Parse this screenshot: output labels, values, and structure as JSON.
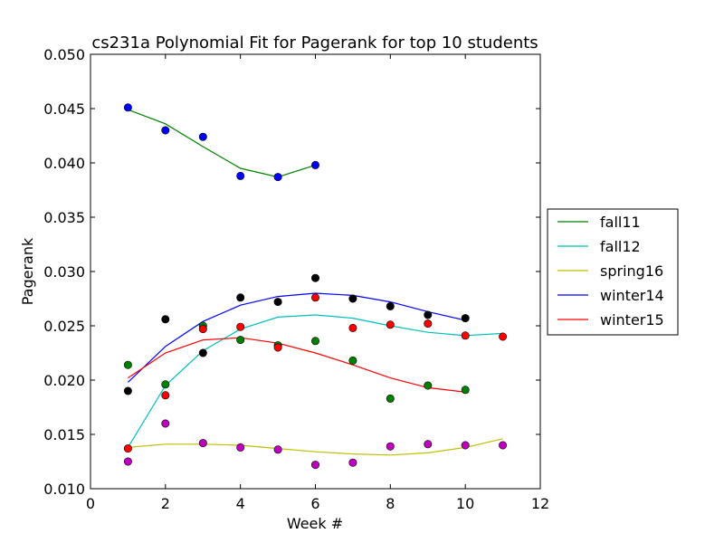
{
  "chart_data": {
    "type": "scatter",
    "title": "cs231a Polynomial Fit for Pagerank for top 10 students",
    "xlabel": "Week #",
    "ylabel": "Pagerank",
    "xlim": [
      0,
      12
    ],
    "ylim": [
      0.01,
      0.05
    ],
    "xticks": [
      0,
      2,
      4,
      6,
      8,
      10,
      12
    ],
    "xtick_labels": [
      "0",
      "2",
      "4",
      "6",
      "8",
      "10",
      "12"
    ],
    "yticks": [
      0.01,
      0.015,
      0.02,
      0.025,
      0.03,
      0.035,
      0.04,
      0.045,
      0.05
    ],
    "ytick_labels": [
      "0.010",
      "0.015",
      "0.020",
      "0.025",
      "0.030",
      "0.035",
      "0.040",
      "0.045",
      "0.050"
    ],
    "grid": false,
    "legend_position": "outside-right",
    "series": [
      {
        "name": "fall11",
        "line_color": "#008000",
        "point_color": "#0000ff",
        "fit_x": [
          1,
          2,
          3,
          4,
          5,
          6
        ],
        "fit_y": [
          0.0449,
          0.0436,
          0.0415,
          0.0395,
          0.0387,
          0.0398
        ],
        "points_x": [
          1,
          2,
          3,
          4,
          5,
          6
        ],
        "points_y": [
          0.0451,
          0.043,
          0.0424,
          0.0388,
          0.0387,
          0.0398
        ]
      },
      {
        "name": "fall12",
        "line_color": "#00bfbf",
        "point_color": "#008000",
        "fit_x": [
          1,
          2,
          3,
          4,
          5,
          6,
          7,
          8,
          9,
          10,
          11
        ],
        "fit_y": [
          0.0138,
          0.0195,
          0.0227,
          0.0247,
          0.0258,
          0.026,
          0.0257,
          0.025,
          0.0244,
          0.0241,
          0.0243
        ],
        "points_x": [
          1,
          2,
          3,
          4,
          5,
          6,
          7,
          8,
          9,
          10
        ],
        "points_y": [
          0.0214,
          0.0196,
          0.025,
          0.0237,
          0.0232,
          0.0236,
          0.0218,
          0.0183,
          0.0195,
          0.0191
        ]
      },
      {
        "name": "spring16",
        "line_color": "#bfbf00",
        "point_color": "#bf00bf",
        "fit_x": [
          1,
          2,
          3,
          4,
          5,
          6,
          7,
          8,
          9,
          10,
          11
        ],
        "fit_y": [
          0.0138,
          0.0141,
          0.0141,
          0.014,
          0.0137,
          0.0134,
          0.0132,
          0.0131,
          0.0133,
          0.0138,
          0.0146
        ],
        "points_x": [
          1,
          2,
          3,
          4,
          5,
          6,
          7,
          8,
          9,
          10,
          11
        ],
        "points_y": [
          0.0125,
          0.016,
          0.0142,
          0.0138,
          0.0136,
          0.0122,
          0.0124,
          0.0139,
          0.0141,
          0.014,
          0.014
        ]
      },
      {
        "name": "winter14",
        "line_color": "#0000ff",
        "point_color": "#000000",
        "fit_x": [
          1,
          2,
          3,
          4,
          5,
          6,
          7,
          8,
          9,
          10
        ],
        "fit_y": [
          0.0198,
          0.0231,
          0.0254,
          0.0269,
          0.0277,
          0.028,
          0.0278,
          0.0272,
          0.0263,
          0.0255
        ],
        "points_x": [
          1,
          2,
          3,
          4,
          5,
          6,
          7,
          8,
          9,
          10
        ],
        "points_y": [
          0.019,
          0.0256,
          0.0225,
          0.0276,
          0.0272,
          0.0294,
          0.0275,
          0.0268,
          0.026,
          0.0257
        ]
      },
      {
        "name": "winter15",
        "line_color": "#ff0000",
        "point_color": "#ff0000",
        "fit_x": [
          1,
          2,
          3,
          4,
          5,
          6,
          7,
          8,
          9,
          10
        ],
        "fit_y": [
          0.0202,
          0.0225,
          0.0237,
          0.0239,
          0.0234,
          0.0225,
          0.0214,
          0.0202,
          0.0193,
          0.0189
        ],
        "points_x": [
          1,
          2,
          3,
          4,
          5,
          6,
          7,
          8,
          9,
          10,
          11
        ],
        "points_y": [
          0.0137,
          0.0186,
          0.0247,
          0.0249,
          0.023,
          0.0276,
          0.0248,
          0.0251,
          0.0252,
          0.0241,
          0.024
        ]
      }
    ]
  }
}
